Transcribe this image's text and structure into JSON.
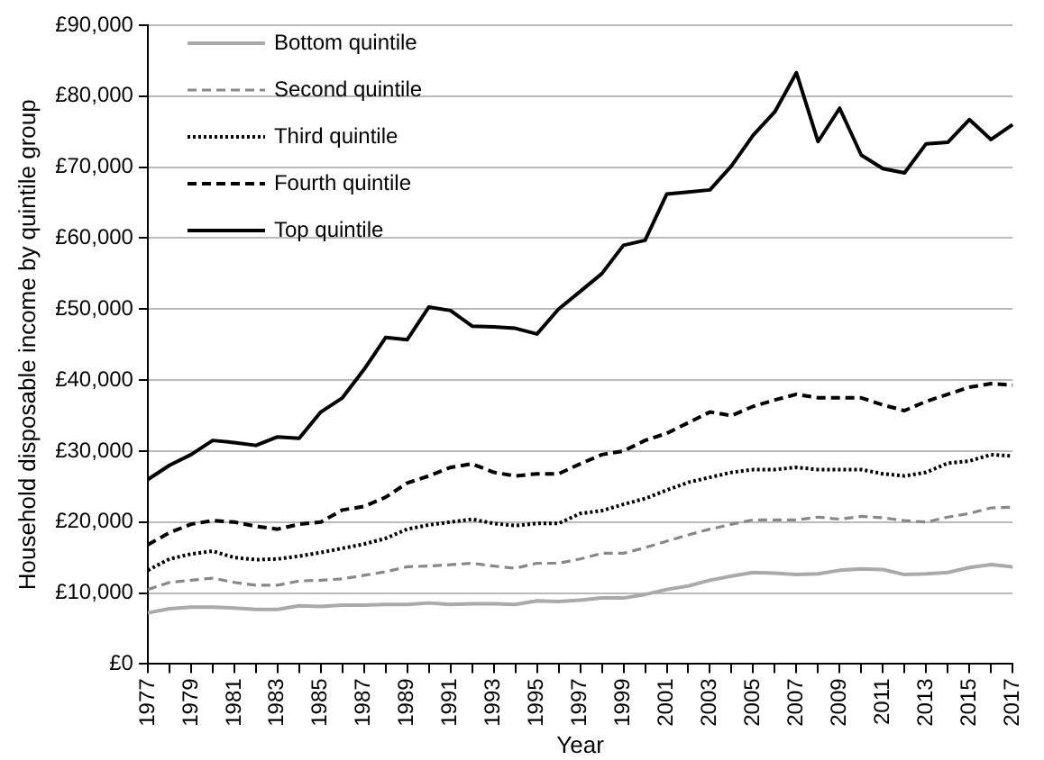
{
  "chart_data": {
    "type": "line",
    "xlabel": "Year",
    "ylabel": "Household disposable income by quintile group",
    "x": [
      1977,
      1978,
      1979,
      1980,
      1981,
      1982,
      1983,
      1984,
      1985,
      1986,
      1987,
      1988,
      1989,
      1990,
      1991,
      1992,
      1993,
      1994,
      1995,
      1996,
      1997,
      1998,
      1999,
      2000,
      2001,
      2002,
      2003,
      2004,
      2005,
      2006,
      2007,
      2008,
      2009,
      2010,
      2011,
      2012,
      2013,
      2014,
      2015,
      2016,
      2017
    ],
    "series": [
      {
        "name": "Bottom quintile",
        "color": "#aaaaaa",
        "line_style": "solid",
        "values": [
          7200,
          7800,
          8000,
          8000,
          7900,
          7700,
          7700,
          8200,
          8100,
          8300,
          8300,
          8400,
          8400,
          8600,
          8400,
          8500,
          8500,
          8400,
          8900,
          8800,
          9000,
          9300,
          9300,
          9800,
          10500,
          11000,
          11800,
          12400,
          12900,
          12800,
          12600,
          12700,
          13200,
          13400,
          13300,
          12600,
          12700,
          12900,
          13600,
          14000,
          13700
        ]
      },
      {
        "name": "Second quintile",
        "color": "#888888",
        "line_style": "dashed",
        "values": [
          10500,
          11500,
          11800,
          12100,
          11500,
          11100,
          11100,
          11700,
          11800,
          12000,
          12500,
          13000,
          13700,
          13800,
          14000,
          14200,
          13800,
          13500,
          14200,
          14200,
          14800,
          15600,
          15600,
          16400,
          17300,
          18200,
          19000,
          19700,
          20300,
          20300,
          20300,
          20700,
          20400,
          20800,
          20600,
          20200,
          20000,
          20700,
          21200,
          22000,
          22100
        ]
      },
      {
        "name": "Third quintile",
        "color": "#000000",
        "line_style": "dotted",
        "values": [
          13200,
          14800,
          15500,
          15900,
          15000,
          14700,
          14800,
          15200,
          15700,
          16300,
          16900,
          17700,
          19000,
          19600,
          20000,
          20400,
          19800,
          19500,
          19800,
          19800,
          21200,
          21600,
          22500,
          23300,
          24500,
          25600,
          26300,
          27000,
          27400,
          27400,
          27700,
          27400,
          27400,
          27400,
          26800,
          26500,
          27000,
          28300,
          28600,
          29500,
          29300
        ]
      },
      {
        "name": "Fourth quintile",
        "color": "#000000",
        "line_style": "dashed",
        "values": [
          16800,
          18500,
          19700,
          20200,
          20000,
          19400,
          19000,
          19700,
          20000,
          21700,
          22200,
          23500,
          25500,
          26500,
          27700,
          28200,
          27000,
          26500,
          26800,
          26800,
          28200,
          29500,
          30000,
          31500,
          32500,
          34000,
          35500,
          35000,
          36300,
          37200,
          38000,
          37500,
          37500,
          37500,
          36500,
          35700,
          37000,
          38000,
          39000,
          39500,
          39300
        ]
      },
      {
        "name": "Top quintile",
        "color": "#000000",
        "line_style": "solid",
        "values": [
          26000,
          28000,
          29500,
          31500,
          31200,
          30800,
          32000,
          31800,
          35500,
          37500,
          41500,
          46000,
          45700,
          50300,
          49800,
          47600,
          47500,
          47300,
          46500,
          50000,
          52500,
          55000,
          59000,
          59700,
          66200,
          66500,
          66800,
          70200,
          74500,
          77800,
          83300,
          73600,
          78300,
          71700,
          69800,
          69200,
          73300,
          73500,
          76700,
          73900,
          76000
        ]
      }
    ],
    "xlim": [
      1977,
      2017
    ],
    "xticks": [
      1977,
      {
        "value": 1978,
        "label": null
      },
      1979,
      {
        "value": 1980,
        "label": null
      },
      1981,
      {
        "value": 1982,
        "label": null
      },
      1983,
      {
        "value": 1984,
        "label": null
      },
      1985,
      {
        "value": 1986,
        "label": null
      },
      1987,
      {
        "value": 1988,
        "label": null
      },
      1989,
      {
        "value": 1990,
        "label": null
      },
      1991,
      {
        "value": 1992,
        "label": null
      },
      1993,
      {
        "value": 1994,
        "label": null
      },
      1995,
      {
        "value": 1996,
        "label": null
      },
      1997,
      {
        "value": 1998,
        "label": null
      },
      1999,
      {
        "value": 2000,
        "label": null
      },
      2001,
      {
        "value": 2002,
        "label": null
      },
      2003,
      {
        "value": 2004,
        "label": null
      },
      2005,
      {
        "value": 2006,
        "label": null
      },
      2007,
      {
        "value": 2008,
        "label": null
      },
      2009,
      {
        "value": 2010,
        "label": null
      },
      2011,
      {
        "value": 2012,
        "label": null
      },
      2013,
      {
        "value": 2014,
        "label": null
      },
      2015,
      {
        "value": 2016,
        "label": null
      },
      2017
    ],
    "ylim": [
      0,
      90000
    ],
    "yticks": [
      {
        "value": 0,
        "label": "£0"
      },
      {
        "value": 10000,
        "label": "£10,000"
      },
      {
        "value": 20000,
        "label": "£20,000"
      },
      {
        "value": 30000,
        "label": "£30,000"
      },
      {
        "value": 40000,
        "label": "£40,000"
      },
      {
        "value": 50000,
        "label": "£50,000"
      },
      {
        "value": 60000,
        "label": "£60,000"
      },
      {
        "value": 70000,
        "label": "£70,000"
      },
      {
        "value": 80000,
        "label": "£80,000"
      },
      {
        "value": 90000,
        "label": "£90,000"
      }
    ],
    "grid": "y",
    "legend": "top left",
    "marker": "none"
  }
}
